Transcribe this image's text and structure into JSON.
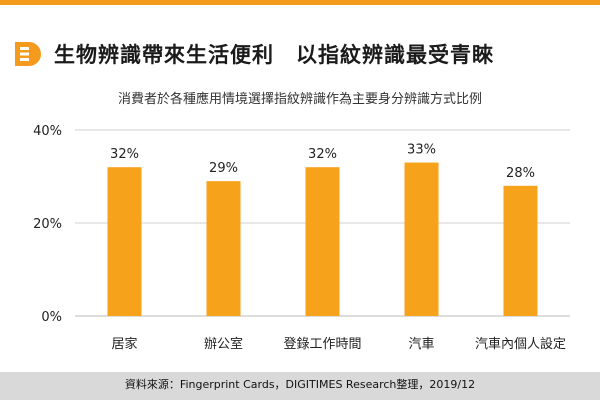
{
  "header": {
    "title": "生物辨識帶來生活便利　以指紋辨識最受青睞",
    "subtitle": "消費者於各種應用情境選擇指紋辨識作為主要身分辨識方式比例"
  },
  "footer": {
    "source": "資料來源：Fingerprint Cards，DIGITIMES Research整理，2019/12"
  },
  "colors": {
    "accent": "#f49a1c",
    "bar": "#f7a21b",
    "axis": "#bbbbbb",
    "grid": "#d0d0d0"
  },
  "icons": {
    "logo": "digitimes-d-logo"
  },
  "chart_data": {
    "type": "bar",
    "categories": [
      "居家",
      "辦公室",
      "登錄工作時間",
      "汽車",
      "汽車內個人設定"
    ],
    "values": [
      32,
      29,
      32,
      33,
      28
    ],
    "value_labels": [
      "32%",
      "29%",
      "32%",
      "33%",
      "28%"
    ],
    "yticks": [
      "0%",
      "20%",
      "40%"
    ],
    "ytick_values": [
      0,
      20,
      40
    ],
    "ylim": [
      0,
      40
    ],
    "grid": true,
    "legend": "none"
  }
}
